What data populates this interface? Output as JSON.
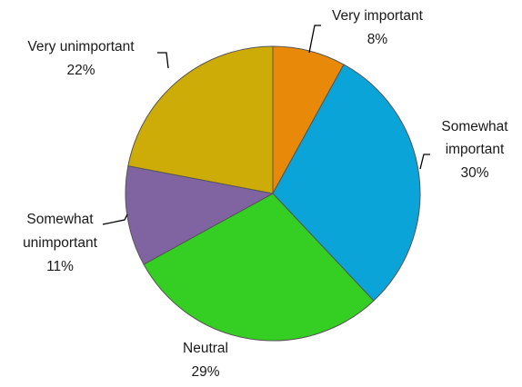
{
  "chart_data": {
    "type": "pie",
    "categories": [
      "Very important",
      "Somewhat important",
      "Neutral",
      "Somewhat unimportant",
      "Very unimportant"
    ],
    "values": [
      8,
      30,
      29,
      11,
      22
    ],
    "unit": "%",
    "legend": "none",
    "slices": [
      {
        "label_lines": [
          "Very important"
        ],
        "percent_text": "8%",
        "value": 8,
        "color": "#e8890a"
      },
      {
        "label_lines": [
          "Somewhat",
          "important"
        ],
        "percent_text": "30%",
        "value": 30,
        "color": "#0aa4d8"
      },
      {
        "label_lines": [
          "Neutral"
        ],
        "percent_text": "29%",
        "value": 29,
        "color": "#35ce23"
      },
      {
        "label_lines": [
          "Somewhat",
          "unimportant"
        ],
        "percent_text": "11%",
        "value": 11,
        "color": "#8064a2"
      },
      {
        "label_lines": [
          "Very unimportant"
        ],
        "percent_text": "22%",
        "value": 22,
        "color": "#ceac08"
      }
    ]
  }
}
